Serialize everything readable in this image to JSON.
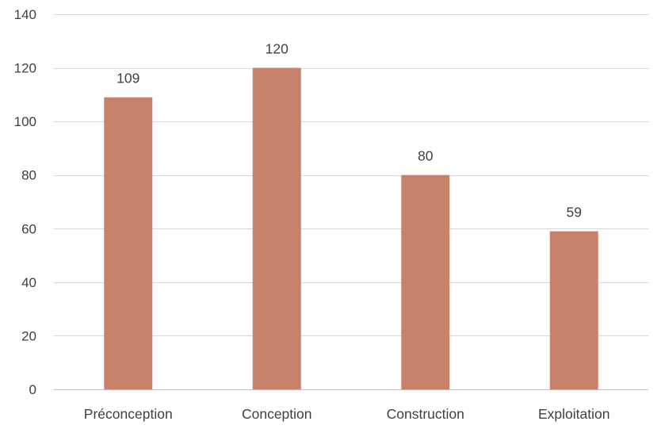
{
  "chart_data": {
    "type": "bar",
    "title": "",
    "xlabel": "",
    "ylabel": "",
    "categories": [
      "Préconception",
      "Conception",
      "Construction",
      "Exploitation"
    ],
    "values": [
      109,
      120,
      80,
      59
    ],
    "data_labels": [
      "109",
      "120",
      "80",
      "59"
    ],
    "ylim": [
      0,
      140
    ],
    "y_ticks": [
      0,
      20,
      40,
      60,
      80,
      100,
      120,
      140
    ],
    "y_tick_labels": [
      "0",
      "20",
      "40",
      "60",
      "80",
      "100",
      "120",
      "140"
    ],
    "grid": true,
    "legend": "none",
    "bar_color": "#c8826a"
  }
}
